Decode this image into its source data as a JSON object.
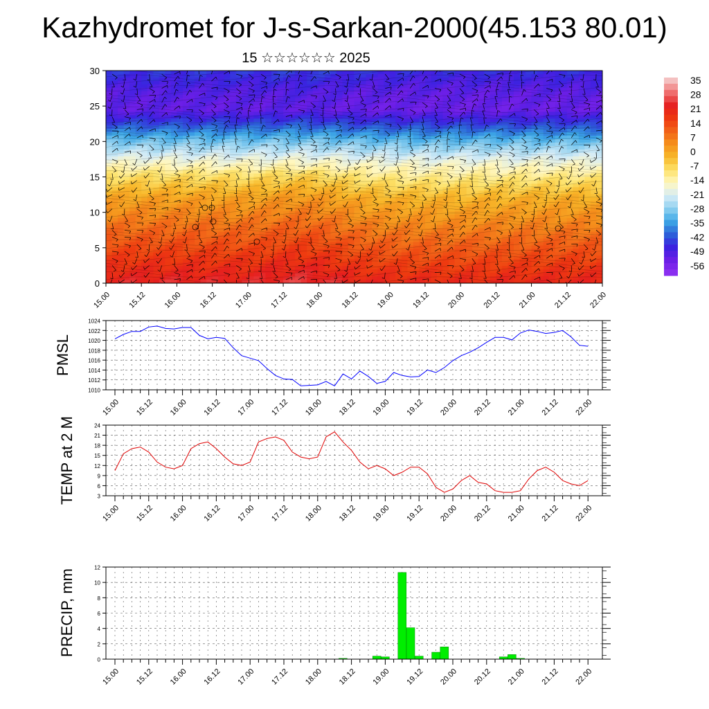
{
  "title": "Kazhydromet for J-s-Sarkan-2000(45.153 80.01)",
  "subtitle": "15 ☆☆☆☆☆☆ 2025",
  "colors": {
    "pmsl_line": "#0000ff",
    "temp_line": "#e00000",
    "precip_bar": "#00ee00",
    "grid": "#555555"
  },
  "time_labels": [
    "15.00",
    "15.12",
    "16.00",
    "16.12",
    "17.00",
    "17.12",
    "18.00",
    "18.12",
    "19.00",
    "19.12",
    "20.00",
    "20.12",
    "21.00",
    "21.12",
    "22.00"
  ],
  "chart_data": [
    {
      "type": "heatmap",
      "title": "",
      "variable": "temperature profile with wind barbs",
      "ylim": [
        0,
        30
      ],
      "yticks": [
        0,
        5,
        10,
        15,
        20,
        25,
        30
      ],
      "colorbar": {
        "labels": [
          "35",
          "28",
          "21",
          "14",
          "7",
          "0",
          "-7",
          "-14",
          "-21",
          "-28",
          "-35",
          "-42",
          "-49",
          "-56"
        ],
        "palette": [
          "#f4c0c0",
          "#ef6a6a",
          "#e51e1e",
          "#ee3a10",
          "#f26418",
          "#f5921c",
          "#f8b82a",
          "#fde26a",
          "#fff7c0",
          "#d6ecf6",
          "#8fd0f0",
          "#3da8e6",
          "#2c63d8",
          "#3a22e0",
          "#6a1ee6",
          "#8a2ef0"
        ]
      },
      "field_profile": [
        {
          "h": 0,
          "t": 24
        },
        {
          "h": 4,
          "t": 16
        },
        {
          "h": 8,
          "t": 8
        },
        {
          "h": 12,
          "t": 0
        },
        {
          "h": 15,
          "t": -10
        },
        {
          "h": 17.5,
          "t": -20
        },
        {
          "h": 20,
          "t": -32
        },
        {
          "h": 22.5,
          "t": -46
        },
        {
          "h": 24.5,
          "t": -56
        },
        {
          "h": 27,
          "t": -54
        },
        {
          "h": 30,
          "t": -48
        }
      ]
    },
    {
      "type": "line",
      "ylabel": "PMSL",
      "ylim": [
        1010,
        1024
      ],
      "yticks": [
        1010,
        1012,
        1014,
        1016,
        1018,
        1020,
        1022,
        1024
      ],
      "x_step_hours": 3,
      "values": [
        1020.3,
        1021.2,
        1021.8,
        1021.8,
        1022.7,
        1022.9,
        1022.4,
        1022.3,
        1022.6,
        1022.6,
        1021.0,
        1020.3,
        1020.6,
        1020.4,
        1018.5,
        1016.9,
        1016.4,
        1015.9,
        1014.3,
        1012.9,
        1012.2,
        1012.1,
        1010.8,
        1010.9,
        1011.0,
        1011.7,
        1010.8,
        1013.2,
        1012.2,
        1013.8,
        1012.7,
        1011.3,
        1011.7,
        1013.5,
        1012.9,
        1012.6,
        1012.7,
        1014.0,
        1013.5,
        1014.5,
        1015.9,
        1016.9,
        1017.6,
        1018.5,
        1019.6,
        1020.6,
        1020.6,
        1020.1,
        1021.5,
        1022.1,
        1021.8,
        1021.4,
        1021.6,
        1022.0,
        1020.7,
        1019.0,
        1018.8
      ]
    },
    {
      "type": "line",
      "ylabel": "TEMP at 2 M",
      "ylim": [
        3,
        24
      ],
      "yticks": [
        3,
        6,
        9,
        12,
        15,
        18,
        21,
        24
      ],
      "x_step_hours": 3,
      "values": [
        10.5,
        15.5,
        17.0,
        17.5,
        16.0,
        13.0,
        11.5,
        11.0,
        12.0,
        17.0,
        18.5,
        19.0,
        17.0,
        14.5,
        12.5,
        12.0,
        13.0,
        19.0,
        20.0,
        20.5,
        19.5,
        16.0,
        14.5,
        14.0,
        14.5,
        20.5,
        22.0,
        19.0,
        16.5,
        13.0,
        11.0,
        12.0,
        11.0,
        9.0,
        10.0,
        11.5,
        11.5,
        9.5,
        5.5,
        4.0,
        5.0,
        7.5,
        9.0,
        7.0,
        6.5,
        4.5,
        4.0,
        4.0,
        4.5,
        8.0,
        10.5,
        11.5,
        10.0,
        7.5,
        6.5,
        6.0,
        7.5
      ]
    },
    {
      "type": "bar",
      "ylabel": "PRECIP, mm",
      "ylim": [
        0,
        12
      ],
      "yticks": [
        0,
        2,
        4,
        6,
        8,
        10,
        12
      ],
      "x_step_hours": 3,
      "values": [
        0,
        0,
        0,
        0,
        0,
        0,
        0,
        0,
        0,
        0,
        0,
        0,
        0,
        0,
        0,
        0,
        0,
        0,
        0,
        0,
        0,
        0,
        0,
        0,
        0,
        0,
        0,
        0.1,
        0,
        0,
        0,
        0.4,
        0.3,
        0,
        11.3,
        4.1,
        0.4,
        0,
        0.9,
        1.6,
        0,
        0,
        0,
        0,
        0,
        0,
        0.3,
        0.6,
        0.1,
        0,
        0,
        0,
        0,
        0,
        0,
        0,
        0
      ]
    }
  ]
}
